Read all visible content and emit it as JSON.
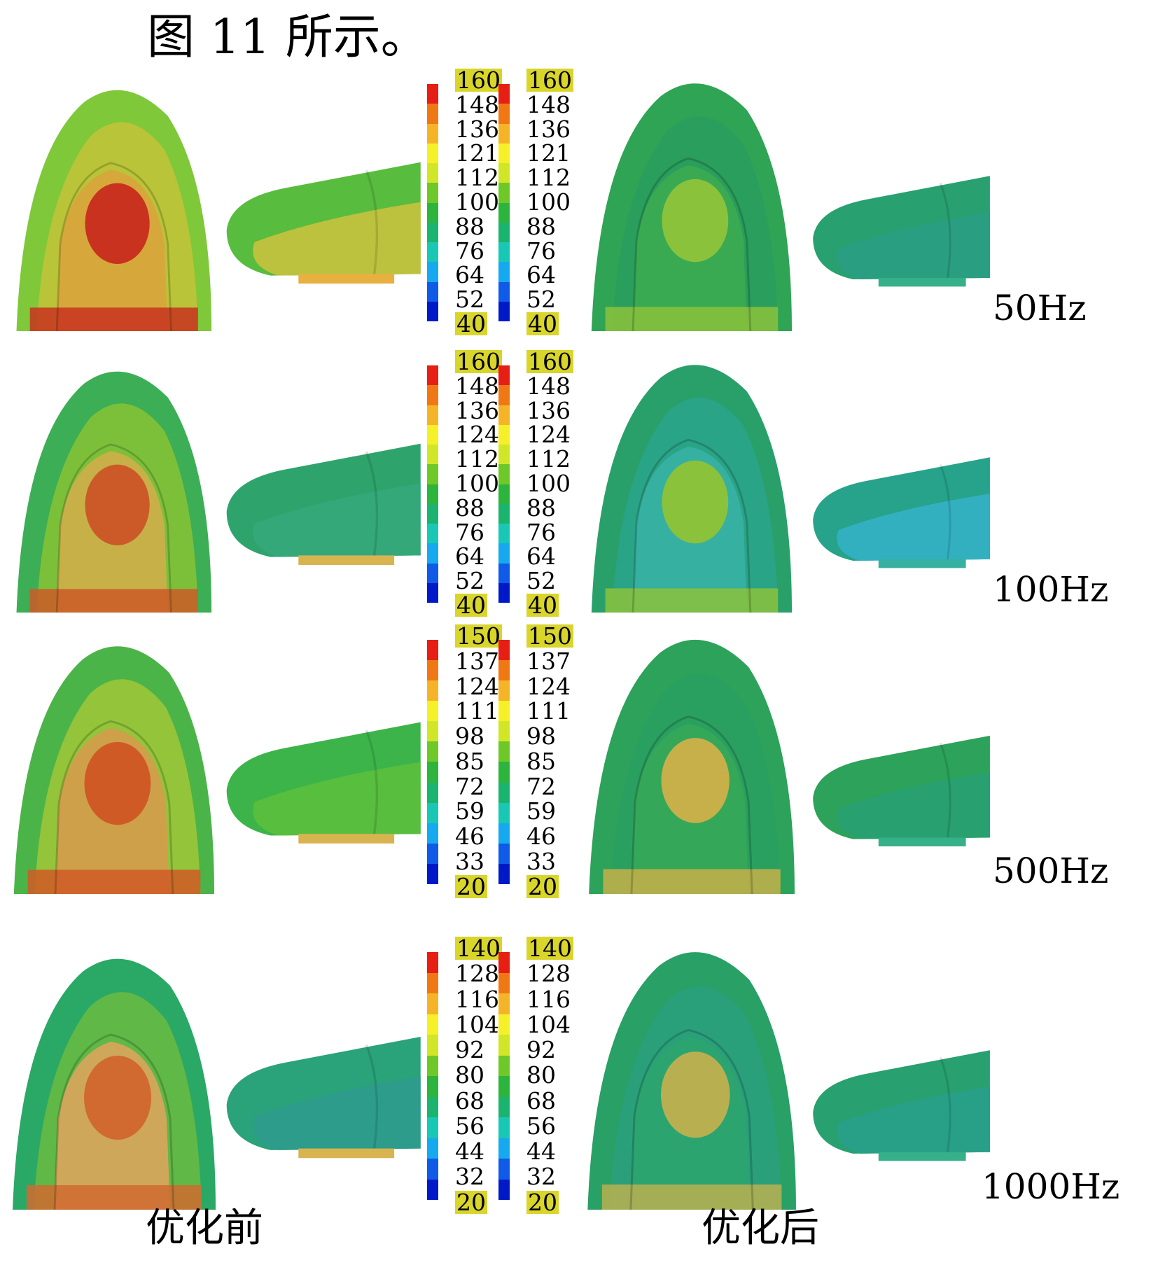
{
  "caption": "图 11 所示。",
  "colors": {
    "scale": [
      "#0019c8",
      "#0f5ae6",
      "#16a9f0",
      "#18c8b4",
      "#1bb46e",
      "#2db43c",
      "#6ec828",
      "#d2e628",
      "#f5f028",
      "#f5b428",
      "#f07814",
      "#e61e14"
    ],
    "highlight": "#d9d52a"
  },
  "rows": [
    {
      "frequency": "50Hz",
      "before": {
        "ticks": [
          "160",
          "148",
          "136",
          "121",
          "112",
          "100",
          "88",
          "76",
          "64",
          "52",
          "40"
        ]
      },
      "after": {
        "ticks": [
          "160",
          "148",
          "136",
          "121",
          "112",
          "100",
          "88",
          "76",
          "64",
          "52",
          "40"
        ]
      }
    },
    {
      "frequency": "100Hz",
      "before": {
        "ticks": [
          "160",
          "148",
          "136",
          "124",
          "112",
          "100",
          "88",
          "76",
          "64",
          "52",
          "40"
        ]
      },
      "after": {
        "ticks": [
          "160",
          "148",
          "136",
          "124",
          "112",
          "100",
          "88",
          "76",
          "64",
          "52",
          "40"
        ]
      }
    },
    {
      "frequency": "500Hz",
      "before": {
        "ticks": [
          "150",
          "137",
          "124",
          "111",
          "98",
          "85",
          "72",
          "59",
          "46",
          "33",
          "20"
        ]
      },
      "after": {
        "ticks": [
          "150",
          "137",
          "124",
          "111",
          "98",
          "85",
          "72",
          "59",
          "46",
          "33",
          "20"
        ]
      }
    },
    {
      "frequency": "1000Hz",
      "before": {
        "ticks": [
          "140",
          "128",
          "116",
          "104",
          "92",
          "80",
          "68",
          "56",
          "44",
          "32",
          "20"
        ]
      },
      "after": {
        "ticks": [
          "140",
          "128",
          "116",
          "104",
          "92",
          "80",
          "68",
          "56",
          "44",
          "32",
          "20"
        ]
      }
    }
  ],
  "labels": {
    "before": "优化前",
    "after": "优化后"
  }
}
